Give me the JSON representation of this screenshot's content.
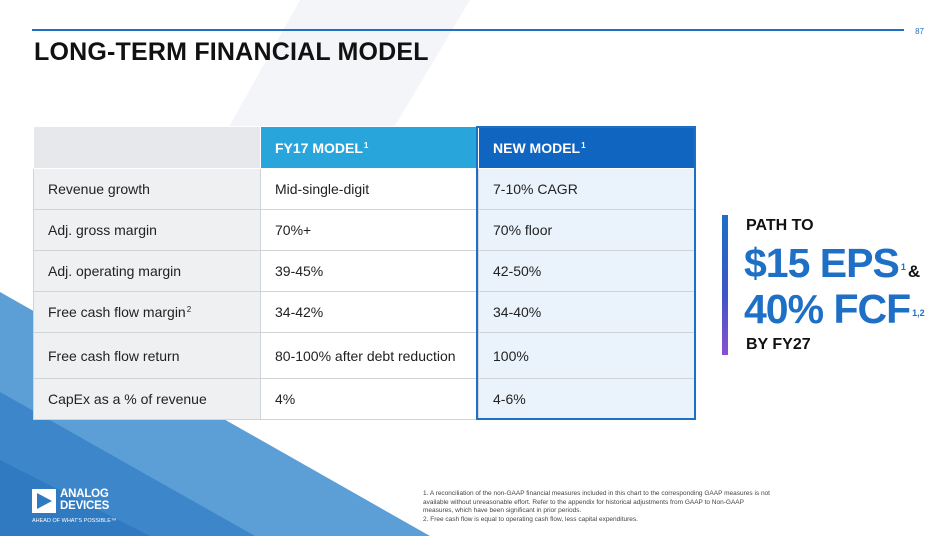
{
  "page_number": "87",
  "title": "LONG-TERM FINANCIAL MODEL",
  "table": {
    "headers": {
      "fy17": "FY17 MODEL",
      "fy17_sup": "1",
      "new": "NEW MODEL",
      "new_sup": "1"
    },
    "rows": [
      {
        "label": "Revenue growth",
        "label_sup": "",
        "fy17": "Mid-single-digit",
        "new": "7-10% CAGR"
      },
      {
        "label": "Adj. gross margin",
        "label_sup": "",
        "fy17": "70%+",
        "new": "70% floor"
      },
      {
        "label": "Adj. operating margin",
        "label_sup": "",
        "fy17": "39-45%",
        "new": "42-50%"
      },
      {
        "label": "Free cash flow margin",
        "label_sup": "2",
        "fy17": "34-42%",
        "new": "34-40%"
      },
      {
        "label": "Free cash flow return",
        "label_sup": "",
        "fy17": "80-100% after debt reduction",
        "new": "100%"
      },
      {
        "label": "CapEx as a % of revenue",
        "label_sup": "",
        "fy17": "4%",
        "new": "4-6%"
      }
    ]
  },
  "path": {
    "line1": "PATH TO",
    "eps": "$15 EPS",
    "eps_sup": "1",
    "amp": "&",
    "fcf": "40% FCF",
    "fcf_sup": "1,2",
    "line4": "BY FY27"
  },
  "logo": {
    "name_line1": "ANALOG",
    "name_line2": "DEVICES",
    "tagline": "AHEAD OF WHAT'S POSSIBLE™"
  },
  "footnotes": [
    "1. A reconciliation of the non-GAAP financial measures included in this chart to the corresponding GAAP measures is not available without unreasonable effort. Refer to the appendix for historical adjustments from GAAP to Non-GAAP measures, which have been significant in prior periods.",
    "2. Free cash flow is equal to operating cash flow, less capital expenditures."
  ],
  "colors": {
    "accent_blue": "#1e6fc6",
    "fy17_header": "#28a6dc",
    "new_header": "#0f65c0",
    "purple_gradient_end": "#8a4fd3"
  }
}
